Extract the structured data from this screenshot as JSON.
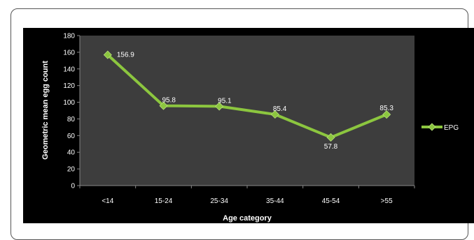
{
  "chart_data": {
    "type": "line",
    "title": "",
    "xlabel": "Age category",
    "ylabel": "Geometric mean egg count",
    "categories": [
      "<14",
      "15-24",
      "25-34",
      "35-44",
      "45-54",
      ">55"
    ],
    "series": [
      {
        "name": "EPG",
        "values": [
          156.9,
          95.8,
          95.1,
          85.4,
          57.8,
          85.3
        ],
        "labels": [
          "156.9",
          "95.8",
          "95.1",
          "85.4",
          "57.8",
          "85.3"
        ],
        "color": "#8cc63f"
      }
    ],
    "ylim": [
      0,
      180
    ],
    "yticks": [
      "0",
      "20",
      "40",
      "60",
      "80",
      "100",
      "120",
      "140",
      "160",
      "180"
    ],
    "grid": false,
    "legend": "right",
    "colors": {
      "chart_background": "#000000",
      "plot_background": "#3d3d3d",
      "text": "#ffffff",
      "axis": "#888888"
    }
  }
}
